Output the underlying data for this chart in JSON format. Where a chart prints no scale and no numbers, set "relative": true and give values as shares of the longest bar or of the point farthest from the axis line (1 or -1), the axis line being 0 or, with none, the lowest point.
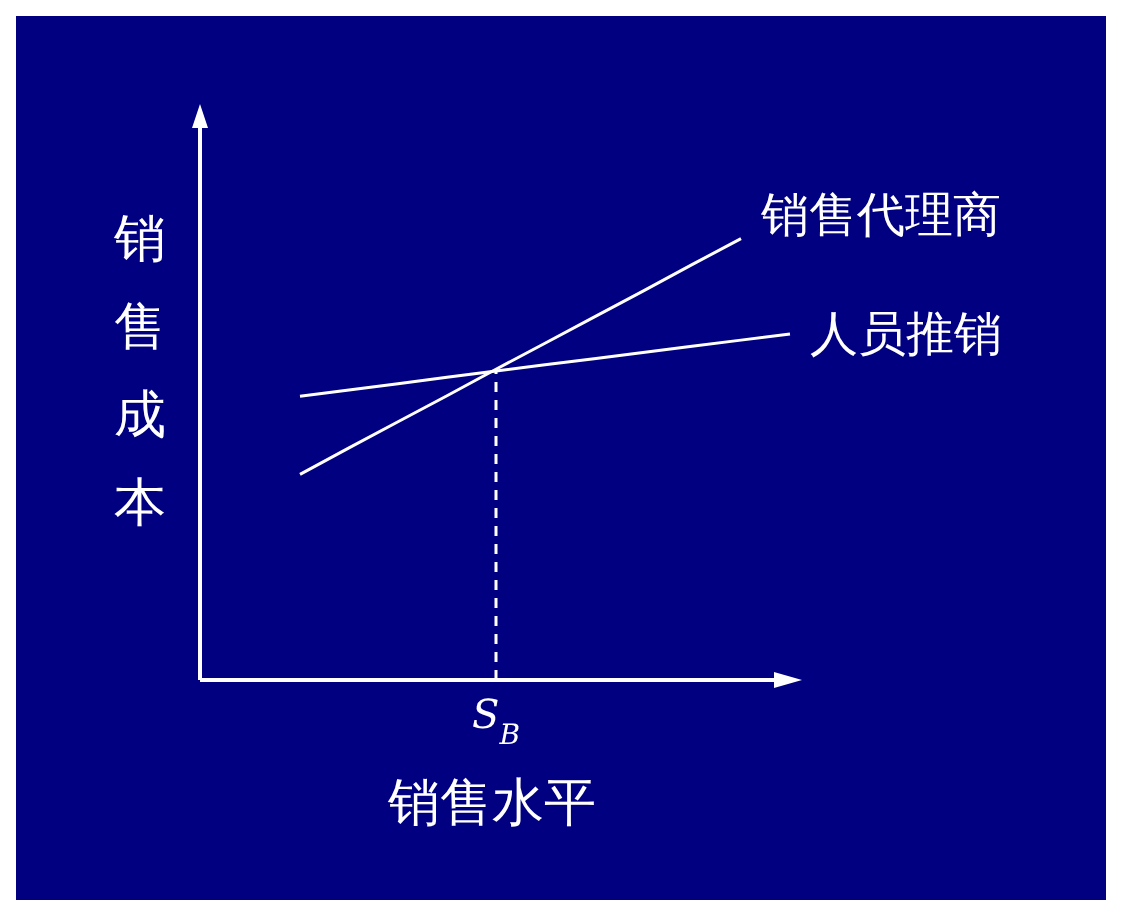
{
  "chart_data": {
    "type": "line",
    "relative": true,
    "xlabel": "销售水平",
    "ylabel": "销售成本",
    "categories": [
      null,
      null,
      null,
      null,
      null,
      null,
      null,
      null,
      null,
      null,
      null
    ],
    "series": [
      {
        "name": "销售代理商",
        "color": "#ffffff",
        "values": [
          0.466,
          0.526,
          0.585,
          0.644,
          0.704,
          0.763,
          0.822,
          0.881,
          0.941,
          1,
          null
        ]
      },
      {
        "name": "人员推销",
        "color": "#ffffff",
        "values": [
          0.643,
          0.657,
          0.671,
          0.686,
          0.7,
          0.714,
          0.728,
          0.742,
          0.756,
          0.77,
          0.784
        ]
      }
    ],
    "ref_lines": [
      {
        "axis": "x",
        "value": "*S*$_{B}$",
        "line_style": "dashed",
        "color": "#ffffff"
      }
    ]
  }
}
